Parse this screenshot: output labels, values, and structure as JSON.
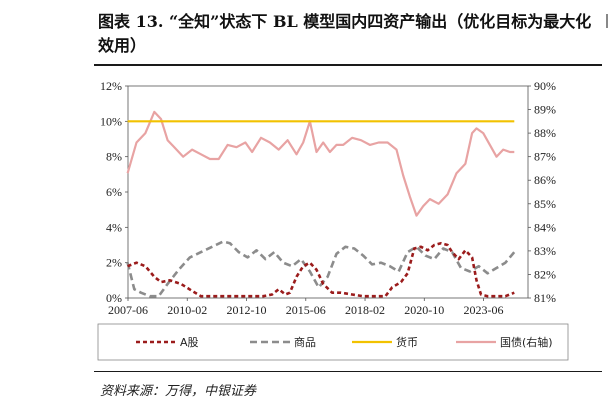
{
  "title": "图表 13. “全知”状态下 BL 模型国内四资产输出（优化目标为最大化效用）",
  "source": "资料来源：万得，中银证券",
  "chart_data": {
    "type": "line",
    "x_tick_labels": [
      "2007-06",
      "2010-02",
      "2012-10",
      "2015-06",
      "2018-02",
      "2020-10",
      "2023-06"
    ],
    "x_range": [
      "2007-06",
      "2025-06"
    ],
    "y_left": {
      "range": [
        0,
        12
      ],
      "ticks": [
        "0%",
        "2%",
        "4%",
        "6%",
        "8%",
        "10%",
        "12%"
      ]
    },
    "y_right": {
      "range": [
        81,
        90
      ],
      "ticks": [
        "81%",
        "82%",
        "83%",
        "84%",
        "85%",
        "86%",
        "87%",
        "88%",
        "89%",
        "90%"
      ]
    },
    "legend_position": "bottom",
    "series": [
      {
        "name": "A股",
        "axis": "left",
        "color": "#9b1c1c",
        "style": "dashed",
        "x": [
          2007.4,
          2007.8,
          2008.2,
          2008.6,
          2008.9,
          2009.3,
          2009.8,
          2010.3,
          2010.7,
          2011.0,
          2011.5,
          2012.0,
          2012.5,
          2013.0,
          2013.5,
          2013.9,
          2014.2,
          2014.5,
          2014.7,
          2015.0,
          2015.3,
          2015.6,
          2015.9,
          2016.2,
          2016.6,
          2017.0,
          2017.5,
          2018.0,
          2018.5,
          2019.0,
          2019.3,
          2019.7,
          2020.0,
          2020.3,
          2020.6,
          2020.9,
          2021.2,
          2021.5,
          2021.8,
          2022.0,
          2022.3,
          2022.6,
          2022.9,
          2023.1,
          2023.3,
          2023.6,
          2024.0,
          2024.4,
          2024.8
        ],
        "y": [
          1.8,
          2.0,
          1.8,
          1.2,
          0.9,
          1.0,
          0.8,
          0.4,
          0.1,
          0.1,
          0.1,
          0.1,
          0.1,
          0.1,
          0.1,
          0.2,
          0.5,
          0.2,
          0.3,
          1.2,
          1.8,
          2.0,
          1.6,
          0.8,
          0.3,
          0.3,
          0.2,
          0.1,
          0.1,
          0.1,
          0.6,
          0.9,
          1.4,
          2.8,
          2.9,
          2.7,
          3.0,
          3.1,
          3.0,
          2.6,
          2.2,
          2.7,
          2.3,
          1.0,
          0.2,
          0.1,
          0.1,
          0.1,
          0.3
        ]
      },
      {
        "name": "商品",
        "axis": "left",
        "color": "#8c8c8c",
        "style": "dashed",
        "x": [
          2007.4,
          2007.7,
          2008.0,
          2008.4,
          2008.8,
          2009.2,
          2009.7,
          2010.2,
          2010.7,
          2011.2,
          2011.7,
          2012.0,
          2012.4,
          2012.8,
          2013.2,
          2013.6,
          2014.0,
          2014.4,
          2014.8,
          2015.2,
          2015.6,
          2016.0,
          2016.4,
          2016.8,
          2017.2,
          2017.6,
          2018.0,
          2018.4,
          2018.8,
          2019.2,
          2019.6,
          2020.0,
          2020.4,
          2020.8,
          2021.2,
          2021.6,
          2022.0,
          2022.4,
          2022.8,
          2023.2,
          2023.6,
          2024.0,
          2024.4,
          2024.8
        ],
        "y": [
          2.0,
          0.5,
          0.3,
          0.1,
          0.1,
          0.8,
          1.6,
          2.3,
          2.6,
          2.9,
          3.2,
          3.1,
          2.6,
          2.3,
          2.7,
          2.2,
          2.6,
          2.0,
          1.8,
          2.2,
          1.5,
          0.6,
          1.2,
          2.5,
          2.9,
          2.8,
          2.4,
          1.9,
          2.0,
          1.8,
          1.5,
          2.6,
          2.9,
          2.4,
          2.2,
          2.8,
          2.6,
          1.7,
          1.5,
          1.8,
          1.4,
          1.7,
          2.0,
          2.6
        ]
      },
      {
        "name": "货币",
        "axis": "left",
        "color": "#f2c200",
        "style": "solid",
        "x": [
          2007.4,
          2024.8
        ],
        "y": [
          10,
          10
        ]
      },
      {
        "name": "国债(右轴)",
        "axis": "right",
        "color": "#e8a3a3",
        "style": "solid",
        "x": [
          2007.4,
          2007.8,
          2008.2,
          2008.6,
          2008.9,
          2009.2,
          2009.5,
          2009.9,
          2010.3,
          2010.7,
          2011.1,
          2011.5,
          2011.9,
          2012.3,
          2012.7,
          2013.0,
          2013.4,
          2013.8,
          2014.2,
          2014.6,
          2015.0,
          2015.3,
          2015.6,
          2015.9,
          2016.2,
          2016.5,
          2016.8,
          2017.1,
          2017.5,
          2017.9,
          2018.3,
          2018.7,
          2019.1,
          2019.5,
          2019.8,
          2020.1,
          2020.4,
          2020.7,
          2021.0,
          2021.4,
          2021.8,
          2022.2,
          2022.6,
          2022.9,
          2023.1,
          2023.4,
          2023.7,
          2024.0,
          2024.3,
          2024.6,
          2024.8
        ],
        "y": [
          86.3,
          87.6,
          88.0,
          88.9,
          88.6,
          87.7,
          87.4,
          87.0,
          87.3,
          87.1,
          86.9,
          86.9,
          87.5,
          87.4,
          87.6,
          87.2,
          87.8,
          87.6,
          87.3,
          87.7,
          87.1,
          87.6,
          88.5,
          87.2,
          87.6,
          87.2,
          87.5,
          87.5,
          87.8,
          87.7,
          87.5,
          87.6,
          87.6,
          87.3,
          86.2,
          85.3,
          84.5,
          84.9,
          85.2,
          85.0,
          85.4,
          86.3,
          86.7,
          88.0,
          88.2,
          88.0,
          87.5,
          87.0,
          87.3,
          87.2,
          87.2
        ]
      }
    ]
  }
}
